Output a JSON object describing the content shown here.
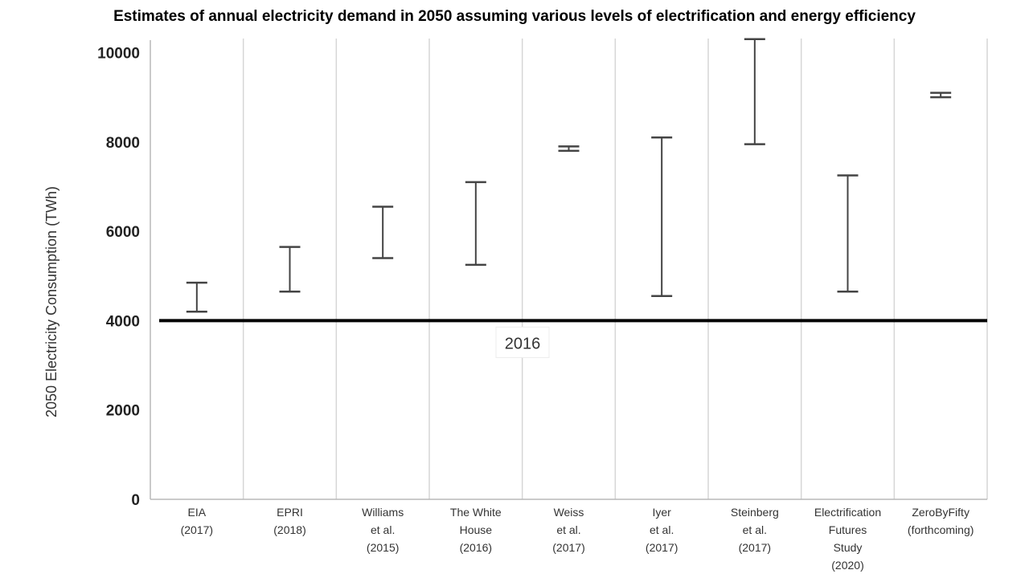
{
  "chart_data": {
    "type": "range",
    "title": "Estimates of annual electricity demand in 2050 assuming various levels of electrification and energy efficiency",
    "xlabel": "",
    "ylabel": "2050 Electricity Consumption (TWh)",
    "ylim": [
      0,
      10300
    ],
    "yticks": [
      "0",
      "2000",
      "4000",
      "6000",
      "8000",
      "10000"
    ],
    "grid": "vertical",
    "categories": [
      [
        "EIA",
        "(2017)"
      ],
      [
        "EPRI",
        "(2018)"
      ],
      [
        "Williams",
        "et al.",
        "(2015)"
      ],
      [
        "The White",
        "House",
        "(2016)"
      ],
      [
        "Weiss",
        "et al.",
        "(2017)"
      ],
      [
        "Iyer",
        "et al.",
        "(2017)"
      ],
      [
        "Steinberg",
        "et al.",
        "(2017)"
      ],
      [
        "Electrification",
        "Futures",
        "Study",
        "(2020)"
      ],
      [
        "ZeroByFifty",
        "(forthcoming)"
      ]
    ],
    "ranges": [
      {
        "low": 4200,
        "high": 4850
      },
      {
        "low": 4650,
        "high": 5650
      },
      {
        "low": 5400,
        "high": 6550
      },
      {
        "low": 5250,
        "high": 7100
      },
      {
        "low": 7800,
        "high": 7900
      },
      {
        "low": 4550,
        "high": 8100
      },
      {
        "low": 7950,
        "high": 10300
      },
      {
        "low": 4650,
        "high": 7250
      },
      {
        "low": 9000,
        "high": 9100
      }
    ],
    "reference_line": {
      "value": 4000,
      "label": "2016"
    }
  }
}
